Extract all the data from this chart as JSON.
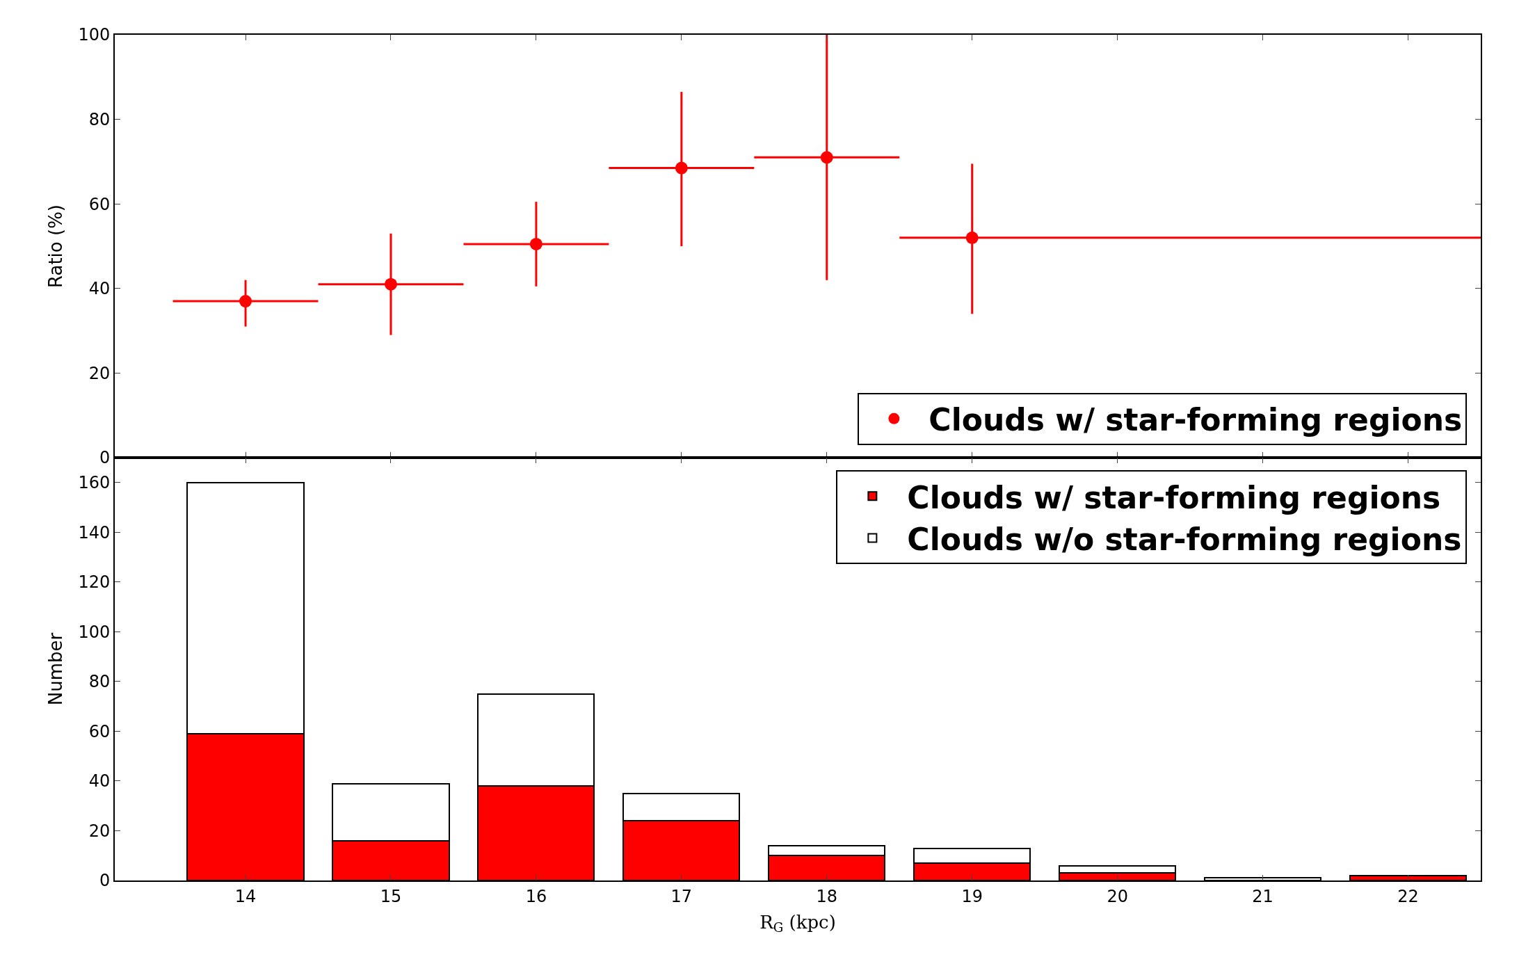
{
  "chart_data": [
    {
      "type": "scatter",
      "ylabel": "Ratio (%)",
      "x": [
        14,
        15,
        16,
        17,
        18,
        19
      ],
      "xlim": [
        13.1,
        22.5
      ],
      "xticks": [
        {
          "value": 14,
          "label": null
        },
        {
          "value": 15,
          "label": null
        },
        {
          "value": 16,
          "label": null
        },
        {
          "value": 17,
          "label": null
        },
        {
          "value": 18,
          "label": null
        },
        {
          "value": 19,
          "label": null
        },
        {
          "value": 20,
          "label": null
        },
        {
          "value": 21,
          "label": null
        },
        {
          "value": 22,
          "label": null
        }
      ],
      "ylim": [
        0,
        100
      ],
      "yticks": [
        0,
        20,
        40,
        60,
        80,
        100
      ],
      "tick_labels": "y",
      "legend": "bottom right",
      "marker": "circle",
      "series": [
        {
          "name": "Clouds w/ star-forming regions",
          "color": "#ff0000",
          "values": [
            37,
            41,
            50.5,
            68.5,
            71,
            52
          ],
          "errors": [
            [
              31,
              42
            ],
            [
              29,
              53
            ],
            [
              40.5,
              60.5
            ],
            [
              50,
              86.5
            ],
            [
              42,
              100
            ],
            [
              34,
              69.5
            ]
          ],
          "xerrors": [
            [
              13.5,
              14.5
            ],
            [
              14.5,
              15.5
            ],
            [
              15.5,
              16.5
            ],
            [
              16.5,
              17.5
            ],
            [
              17.5,
              18.5
            ],
            [
              18.5,
              22.5
            ]
          ]
        }
      ]
    },
    {
      "type": "bar",
      "stacked": true,
      "xlabel": "R$_{G}$ (kpc)",
      "ylabel": "Number",
      "x": [
        14,
        15,
        16,
        17,
        18,
        19,
        20,
        21,
        22
      ],
      "xlim": [
        13.1,
        22.5
      ],
      "xticks": [
        14,
        15,
        16,
        17,
        18,
        19,
        20,
        21,
        22
      ],
      "ylim": [
        0,
        170
      ],
      "yticks": [
        0,
        20,
        40,
        60,
        80,
        100,
        120,
        140,
        160
      ],
      "legend": "top right",
      "series": [
        {
          "name": "Clouds w/ star-forming regions",
          "color": "#ff0000",
          "values": [
            59,
            16,
            38,
            24,
            10,
            7,
            3,
            0,
            2
          ]
        },
        {
          "name": "Clouds w/o star-forming regions",
          "color": "#ffffff",
          "values": [
            101,
            23,
            37,
            11,
            4,
            6,
            3,
            1,
            0
          ]
        }
      ]
    }
  ]
}
